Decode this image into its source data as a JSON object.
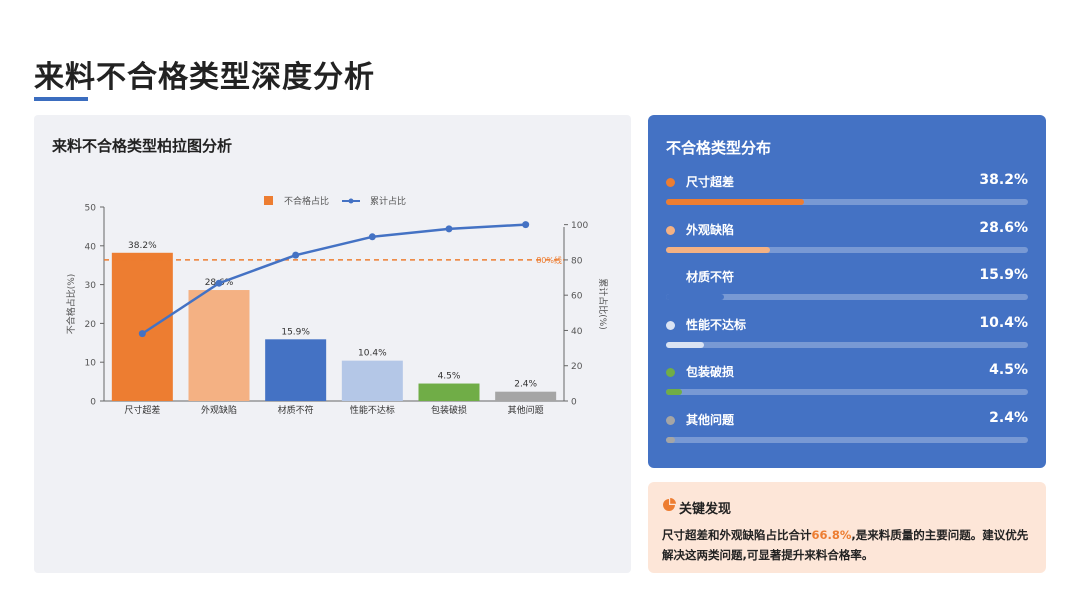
{
  "page": {
    "title": "来料不合格类型深度分析"
  },
  "colors": {
    "accent": "#3b6dbf",
    "panel_blue": "#4472c4",
    "finding_bg": "#fde6d8",
    "highlight": "#ed7d31"
  },
  "chart_data": {
    "type": "bar",
    "title": "来料不合格类型柏拉图分析",
    "categories": [
      "尺寸超差",
      "外观缺陷",
      "材质不符",
      "性能不达标",
      "包装破损",
      "其他问题"
    ],
    "series": [
      {
        "name": "不合格占比",
        "type": "bar",
        "axis": "left",
        "values": [
          38.2,
          28.6,
          15.9,
          10.4,
          4.5,
          2.4
        ],
        "data_labels": [
          "38.2%",
          "28.6%",
          "15.9%",
          "10.4%",
          "4.5%",
          "2.4%"
        ],
        "colors": [
          "#ed7d31",
          "#f4b183",
          "#4472c4",
          "#b4c7e7",
          "#70ad47",
          "#a5a5a5"
        ]
      },
      {
        "name": "累计占比",
        "type": "line",
        "axis": "right",
        "values": [
          38.2,
          66.8,
          82.7,
          93.1,
          97.6,
          100.0
        ],
        "color": "#4472c4"
      }
    ],
    "ylabel": "不合格占比(%)",
    "y2label": "累计占比(%)",
    "ylim": [
      0,
      50
    ],
    "y2lim": [
      0,
      110
    ],
    "yticks": [
      0,
      10,
      20,
      30,
      40,
      50
    ],
    "y2ticks": [
      0,
      20,
      40,
      60,
      80,
      100
    ],
    "reference_line": {
      "value": 80,
      "axis": "right",
      "label": "80%线",
      "color": "#ed7d31"
    },
    "legend": {
      "position": "top"
    },
    "grid": false
  },
  "distribution": {
    "title": "不合格类型分布",
    "items": [
      {
        "name": "尺寸超差",
        "value_label": "38.2%",
        "value": 38.2,
        "color": "#ed7d31",
        "show_dot": true
      },
      {
        "name": "外观缺陷",
        "value_label": "28.6%",
        "value": 28.6,
        "color": "#f4b183",
        "show_dot": true
      },
      {
        "name": "材质不符",
        "value_label": "15.9%",
        "value": 15.9,
        "color": "#4472c4",
        "show_dot": false
      },
      {
        "name": "性能不达标",
        "value_label": "10.4%",
        "value": 10.4,
        "color": "#dae3f3",
        "show_dot": true
      },
      {
        "name": "包装破损",
        "value_label": "4.5%",
        "value": 4.5,
        "color": "#70ad47",
        "show_dot": true
      },
      {
        "name": "其他问题",
        "value_label": "2.4%",
        "value": 2.4,
        "color": "#a5a5a5",
        "show_dot": true
      }
    ]
  },
  "findings": {
    "title": "关键发现",
    "icon": "pie-chart-icon",
    "text_before": "尺寸超差和外观缺陷占比合计",
    "highlight": "66.8%",
    "text_after": ",是来料质量的主要问题。建议优先解决这两类问题,可显著提升来料合格率。"
  }
}
